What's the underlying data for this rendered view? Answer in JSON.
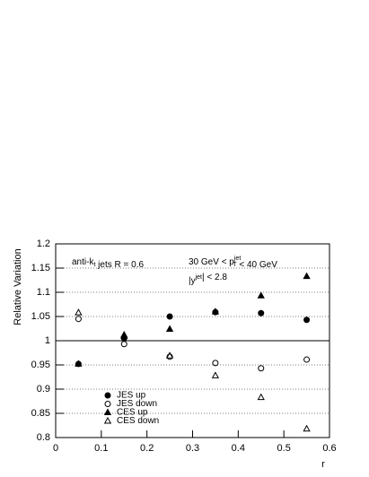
{
  "chart_data": {
    "type": "scatter",
    "xlabel": "r",
    "ylabel": "Relative Variation",
    "x": [
      0.05,
      0.15,
      0.25,
      0.35,
      0.45,
      0.55
    ],
    "series": [
      {
        "name": "JES up",
        "color": "#000000",
        "marker": "circle",
        "filled": true,
        "values": [
          0.952,
          1.005,
          1.05,
          1.059,
          1.057,
          1.043
        ]
      },
      {
        "name": "JES down",
        "color": "#000000",
        "marker": "circle",
        "filled": false,
        "values": [
          1.045,
          0.993,
          0.967,
          0.954,
          0.943,
          0.961
        ]
      },
      {
        "name": "CES up",
        "color": "#000000",
        "marker": "triangle",
        "filled": true,
        "values": [
          0.952,
          1.01,
          1.024,
          1.06,
          1.093,
          1.133
        ]
      },
      {
        "name": "CES down",
        "color": "#000000",
        "marker": "triangle",
        "filled": false,
        "values": [
          1.058,
          1.012,
          0.969,
          0.928,
          0.883,
          0.818
        ]
      }
    ],
    "xlim": [
      0,
      0.6
    ],
    "ylim": [
      0.8,
      1.2
    ],
    "xticks": [
      0,
      0.1,
      0.2,
      0.3,
      0.4,
      0.5,
      0.6
    ],
    "yticks": [
      0.8,
      0.85,
      0.9,
      0.95,
      1,
      1.05,
      1.1,
      1.15,
      1.2
    ],
    "grid": true,
    "refline": 1,
    "annotations": [
      [
        {
          "text": "anti-k"
        },
        {
          "sub": "t"
        },
        {
          "text": " jets R = 0.6"
        }
      ],
      [
        {
          "text": "30 GeV < p"
        },
        {
          "sup": "jet"
        },
        {
          "sub": "T"
        },
        {
          "text": " < 40 GeV"
        }
      ],
      [
        {
          "text": "|y"
        },
        {
          "sup": "jet"
        },
        {
          "text": "| < 2.8"
        }
      ]
    ]
  }
}
